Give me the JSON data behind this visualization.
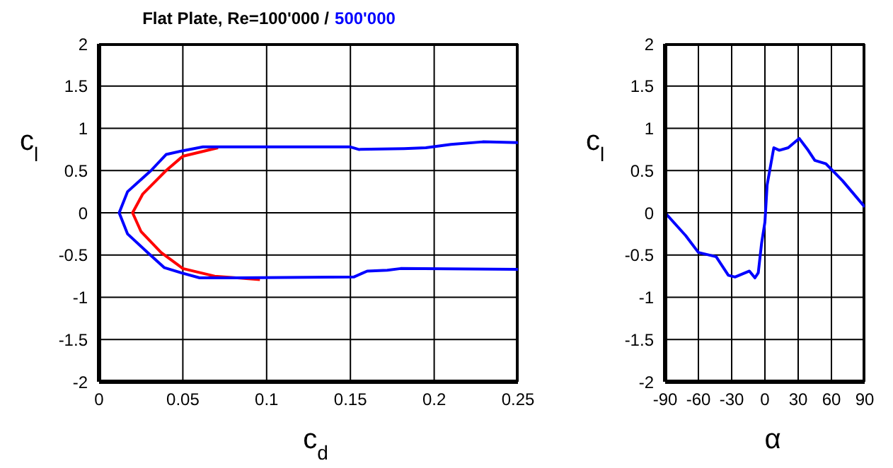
{
  "chart_data": [
    {
      "type": "line",
      "title": "Flat Plate, Re=100'000 /",
      "xlabel": "c$_{d}$",
      "ylabel": "c$_{l}$",
      "xlim": [
        0,
        0.25
      ],
      "xticks": [
        0,
        0.05,
        0.1,
        0.15,
        0.2,
        0.25
      ],
      "ylim": [
        -2,
        2
      ],
      "yticks": [
        -2,
        -1.5,
        -1,
        -0.5,
        0,
        0.5,
        1,
        1.5,
        2
      ],
      "grid": true,
      "legend": "top",
      "marker": "none",
      "series": [
        {
          "color": "#ff0000",
          "x": [
            0.096,
            0.069,
            0.05,
            0.037,
            0.025,
            0.02,
            0.026,
            0.04,
            0.05,
            0.071
          ],
          "values": [
            -0.79,
            -0.75,
            -0.66,
            -0.47,
            -0.22,
            0,
            0.22,
            0.5,
            0.67,
            0.77
          ]
        },
        {
          "name": "500'000",
          "color": "#0000ff",
          "x": [
            0.25,
            0.18,
            0.172,
            0.16,
            0.152,
            0.083,
            0.06,
            0.049,
            0.039,
            0.029,
            0.017,
            0.012,
            0.017,
            0.031,
            0.04,
            0.049,
            0.062,
            0.15,
            0.155,
            0.182,
            0.195,
            0.21,
            0.229,
            0.25
          ],
          "values": [
            -0.67,
            -0.66,
            -0.68,
            -0.69,
            -0.76,
            -0.77,
            -0.77,
            -0.71,
            -0.65,
            -0.47,
            -0.25,
            0,
            0.25,
            0.5,
            0.69,
            0.73,
            0.78,
            0.78,
            0.75,
            0.76,
            0.77,
            0.81,
            0.84,
            0.83
          ]
        }
      ]
    },
    {
      "type": "line",
      "xlabel": "α",
      "ylabel": "c$_{l}$",
      "xlim": [
        -90,
        90
      ],
      "xticks": [
        -90,
        -60,
        -30,
        0,
        30,
        60,
        90
      ],
      "ylim": [
        -2,
        2
      ],
      "yticks": [
        -2,
        -1.5,
        -1,
        -0.5,
        0,
        0.5,
        1,
        1.5,
        2
      ],
      "grid": true,
      "marker": "none",
      "series": [
        {
          "color": "#0000ff",
          "x": [
            -90,
            -71.5,
            -60,
            -44,
            -33,
            -27,
            -14,
            -9,
            -6,
            -3,
            0,
            2,
            8,
            13,
            21,
            31,
            39,
            45,
            55,
            70,
            90
          ],
          "values": [
            0,
            -0.27,
            -0.47,
            -0.52,
            -0.74,
            -0.76,
            -0.69,
            -0.77,
            -0.71,
            -0.36,
            -0.11,
            0.33,
            0.77,
            0.74,
            0.77,
            0.88,
            0.74,
            0.62,
            0.58,
            0.38,
            0.07
          ]
        }
      ]
    }
  ]
}
